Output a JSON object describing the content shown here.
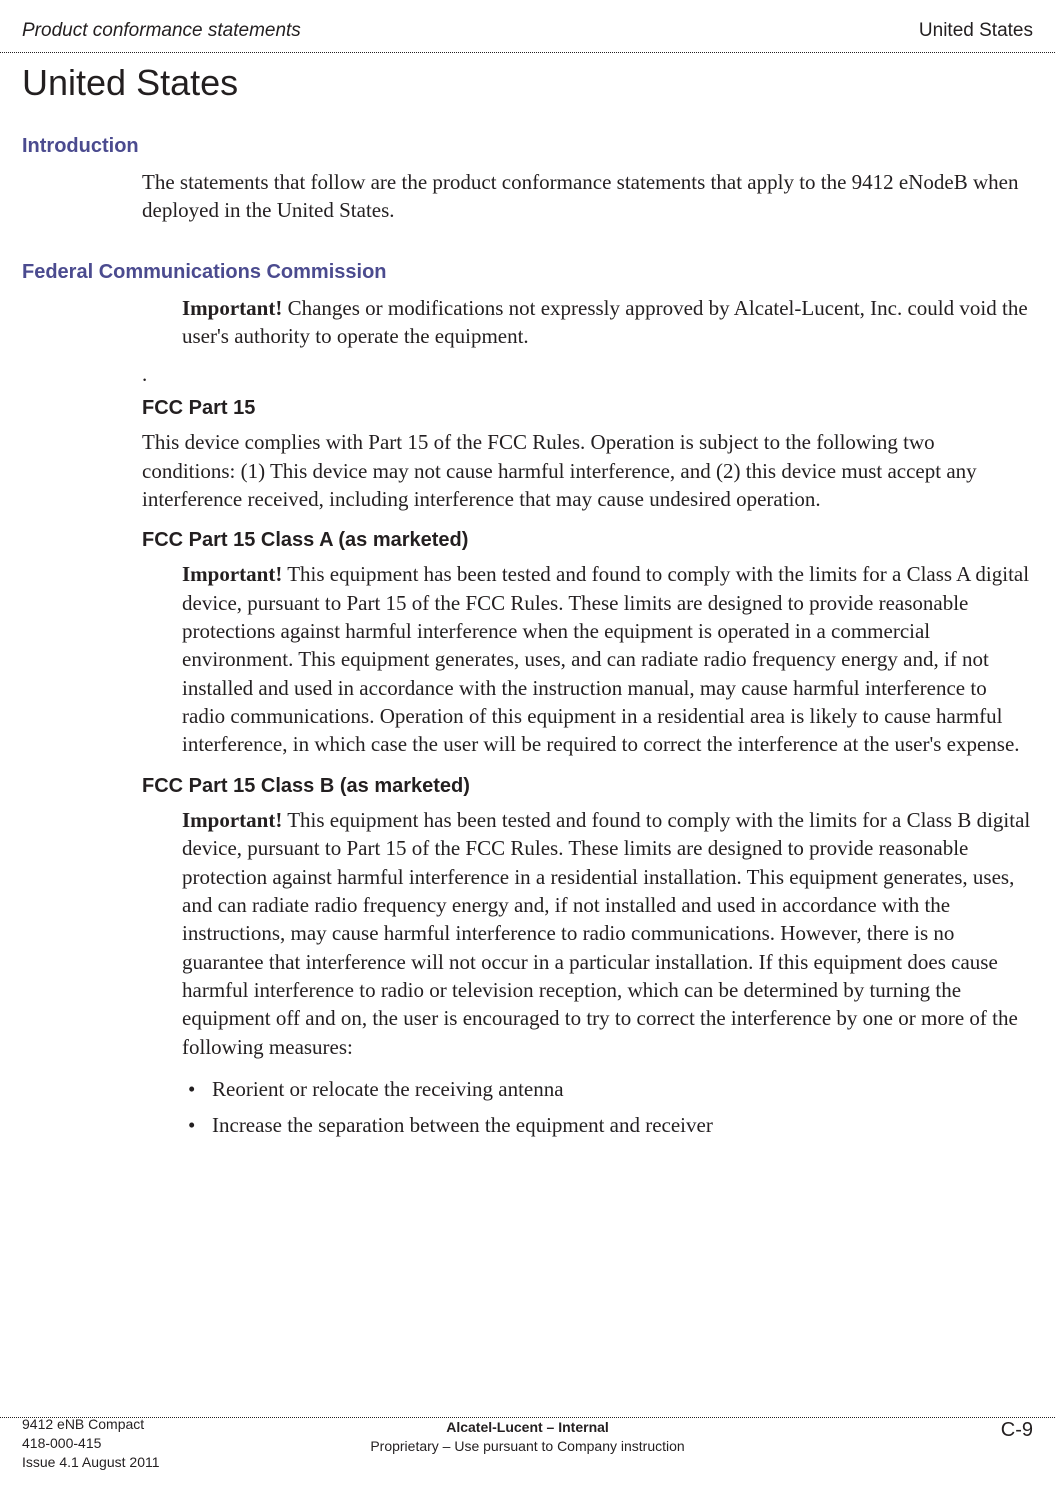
{
  "header": {
    "left": "Product conformance statements",
    "right": "United States"
  },
  "title": "United States",
  "sections": {
    "intro": {
      "heading": "Introduction",
      "para": "The statements that follow are the product conformance statements that apply to the 9412 eNodeB when deployed in the United States."
    },
    "fcc": {
      "heading": "Federal Communications Commission",
      "important_label": "Important!",
      "important_text": " Changes or modifications not expressly approved by Alcatel-Lucent, Inc. could void the user's authority to operate the equipment.",
      "lone_dot": ".",
      "part15_heading": "FCC Part 15",
      "part15_text": "This device complies with Part 15 of the FCC Rules. Operation is subject to the following two conditions: (1) This device may not cause harmful interference, and (2) this device must accept any interference received, including interference that may cause undesired operation.",
      "classA_heading": "FCC Part 15 Class A (as marketed)",
      "classA_important_label": "Important!",
      "classA_text": " This equipment has been tested and found to comply with the limits for a Class A digital device, pursuant to Part 15 of the FCC Rules. These limits are designed to provide reasonable protections against harmful interference when the equipment is operated in a commercial environment. This equipment generates, uses, and can radiate radio frequency energy and, if not installed and used in accordance with the instruction manual, may cause harmful interference to radio communications. Operation of this equipment in a residential area is likely to cause harmful interference, in which case the user will be required to correct the interference at the user's expense.",
      "classB_heading": "FCC Part 15 Class B (as marketed)",
      "classB_important_label": "Important!",
      "classB_text": " This equipment has been tested and found to comply with the limits for a Class B digital device, pursuant to Part 15 of the FCC Rules. These limits are designed to provide reasonable protection against harmful interference in a residential installation. This equipment generates, uses, and can radiate radio frequency energy and, if not installed and used in accordance with the instructions, may cause harmful interference to radio communications. However, there is no guarantee that interference will not occur in a particular installation. If this equipment does cause harmful interference to radio or television reception, which can be determined by turning the equipment off and on, the user is encouraged to try to correct the interference by one or more of the following measures:",
      "bullets": [
        "Reorient or relocate the receiving antenna",
        "Increase the separation between the equipment and receiver"
      ]
    }
  },
  "footer": {
    "left_line1": "9412 eNB Compact",
    "left_line2": "418-000-415",
    "left_line3": "Issue 4.1   August 2011",
    "center_line1": "Alcatel-Lucent – Internal",
    "center_line2": "Proprietary – Use pursuant to Company instruction",
    "right": "C-9"
  }
}
